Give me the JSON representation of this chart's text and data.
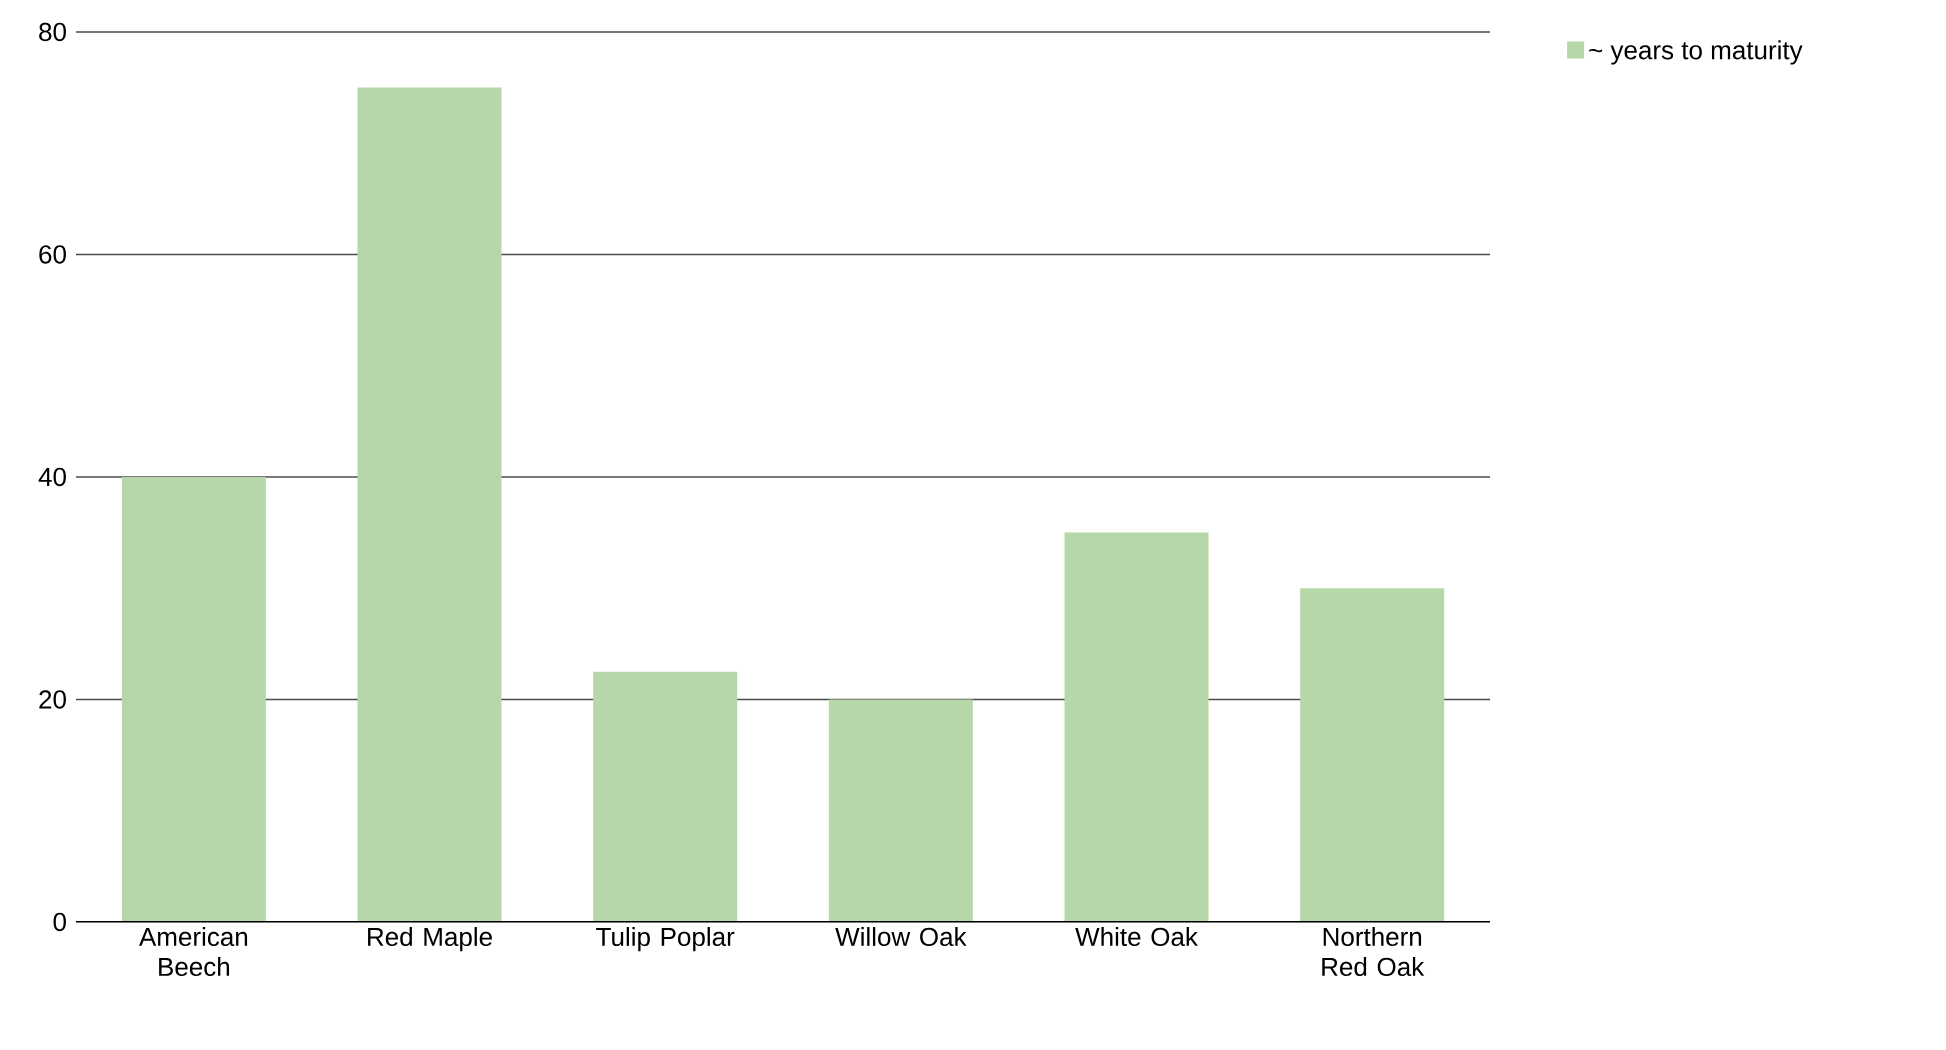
{
  "chart_data": {
    "type": "bar",
    "categories": [
      "American Beech",
      "Red Maple",
      "Tulip Poplar",
      "Willow Oak",
      "White Oak",
      "Northern Red Oak"
    ],
    "series": [
      {
        "name": "~ years to maturity",
        "color": "#b6d7a8",
        "values": [
          40,
          75,
          22.5,
          20,
          35,
          30
        ]
      }
    ],
    "ylim": [
      0,
      80
    ],
    "yticks": [
      0,
      20,
      40,
      60,
      80
    ],
    "grid": "y",
    "legend": "top right"
  }
}
